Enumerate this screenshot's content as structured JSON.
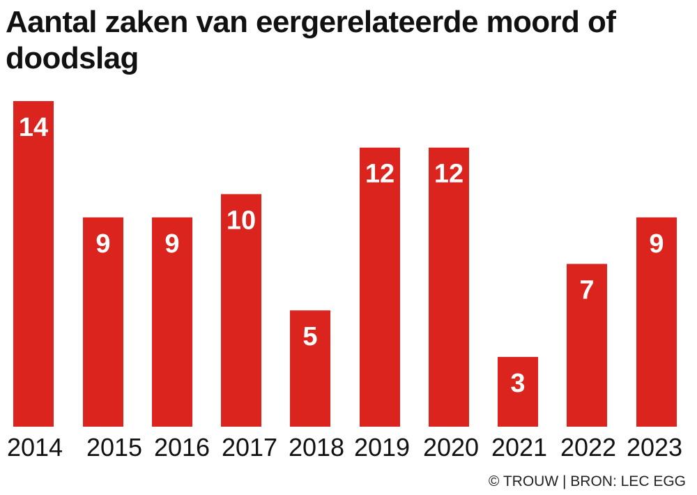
{
  "chart_data": {
    "type": "bar",
    "title": "Aantal zaken van eergerelateerde moord of doodslag",
    "categories": [
      "2014",
      "2015",
      "2016",
      "2017",
      "2018",
      "2019",
      "2020",
      "2021",
      "2022",
      "2023"
    ],
    "values": [
      14,
      9,
      9,
      10,
      5,
      12,
      12,
      3,
      7,
      9
    ],
    "data_labels": [
      "14",
      "9",
      "9",
      "10",
      "5",
      "12",
      "12",
      "3",
      "7",
      "9"
    ],
    "xlabel": "",
    "ylabel": "",
    "ylim": [
      0,
      14
    ],
    "grid": false,
    "legend": "none",
    "bar_color": "#dc241f",
    "label_color": "#ffffff"
  },
  "footer": {
    "credit": "© TROUW | BRON: LEC EGG"
  }
}
